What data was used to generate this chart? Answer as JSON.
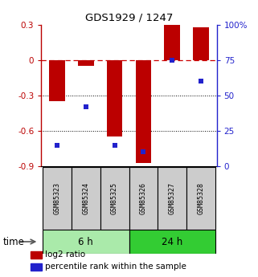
{
  "title": "GDS1929 / 1247",
  "samples": [
    "GSM85323",
    "GSM85324",
    "GSM85325",
    "GSM85326",
    "GSM85327",
    "GSM85328"
  ],
  "log2_ratio": [
    -0.35,
    -0.05,
    -0.65,
    -0.87,
    0.3,
    0.28
  ],
  "percentile_rank": [
    15,
    42,
    15,
    10,
    75,
    60
  ],
  "ylim_left": [
    -0.9,
    0.3
  ],
  "ylim_right": [
    0,
    100
  ],
  "yticks_left": [
    0.3,
    0.0,
    -0.3,
    -0.6,
    -0.9
  ],
  "yticks_right": [
    100,
    75,
    50,
    25,
    0
  ],
  "groups": [
    {
      "label": "6 h",
      "indices": [
        0,
        1,
        2
      ],
      "color": "#aaeaaa"
    },
    {
      "label": "24 h",
      "indices": [
        3,
        4,
        5
      ],
      "color": "#33cc33"
    }
  ],
  "time_label": "time",
  "bar_color": "#bb0000",
  "dot_color": "#2222cc",
  "dashed_line_color": "#cc0000",
  "dotted_line_color": "#000000",
  "bg_color": "#ffffff",
  "legend_bar_label": "log2 ratio",
  "legend_dot_label": "percentile rank within the sample",
  "bar_width": 0.55,
  "group_box_color": "#cccccc",
  "group_box_border": "#000000"
}
